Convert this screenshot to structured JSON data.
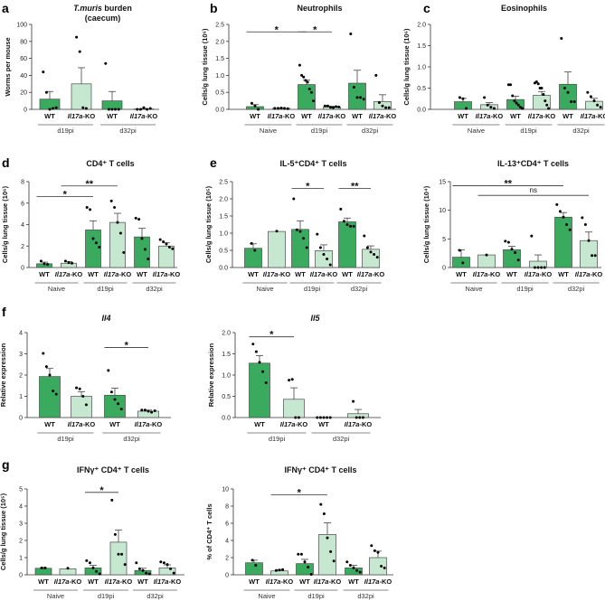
{
  "colors": {
    "wt": "#3aab5e",
    "ko": "#c6e8d0",
    "outline": "#4a4a4a",
    "point": "#000000",
    "group_line": "#8a8a8a"
  },
  "chart_data": [
    {
      "panel": "a",
      "type": "bar",
      "title": [
        "T.muris burden",
        "(caecum)"
      ],
      "title_style": "italic-first-word",
      "ylabel": "Worms per mouse",
      "ylim": [
        0,
        100
      ],
      "yticks": [
        "0",
        "20",
        "40",
        "60",
        "80",
        "100"
      ],
      "categories": [
        "WT",
        "Il17a-KO",
        "WT",
        "Il17a-KO"
      ],
      "groups": [
        {
          "label": "d19pi",
          "span": [
            0,
            1
          ]
        },
        {
          "label": "d32pi",
          "span": [
            2,
            3
          ]
        }
      ],
      "means": [
        12,
        30,
        10,
        0.5
      ],
      "sem": [
        9,
        19,
        11,
        0.5
      ],
      "points": [
        [
          44,
          20,
          0,
          1,
          2
        ],
        [
          85,
          68,
          2,
          1
        ],
        [
          54,
          0,
          0,
          0,
          0
        ],
        [
          0,
          0,
          2,
          0,
          1
        ]
      ],
      "significance": []
    },
    {
      "panel": "b",
      "type": "bar",
      "title": [
        "Neutrophils"
      ],
      "title_style": "normal",
      "ylabel": "Cells/g lung tissue  (10⁶)",
      "ylim": [
        0,
        2.5
      ],
      "yticks": [
        "0.0",
        "0.5",
        "1.0",
        "1.5",
        "2.0",
        "2.5"
      ],
      "categories": [
        "WT",
        "Il17a-KO",
        "WT",
        "Il17a-KO",
        "WT",
        "Il17a-KO"
      ],
      "groups": [
        {
          "label": "Naive",
          "span": [
            0,
            1
          ]
        },
        {
          "label": "d19pi",
          "span": [
            2,
            3
          ]
        },
        {
          "label": "d32pi",
          "span": [
            4,
            5
          ]
        }
      ],
      "means": [
        0.08,
        0.03,
        0.73,
        0.07,
        0.77,
        0.23
      ],
      "sem": [
        0.06,
        0.01,
        0.13,
        0.02,
        0.38,
        0.2
      ],
      "points": [
        [
          0.18,
          0.1,
          0
        ],
        [
          0.03,
          0.03,
          0.04,
          0.03,
          0.02
        ],
        [
          1.3,
          1.0,
          0.95,
          0.85,
          0.8,
          0.6,
          0.5,
          0.25
        ],
        [
          0.1,
          0.1,
          0.06,
          0.05,
          0.08,
          0.07
        ],
        [
          2.22,
          0.65,
          0.35,
          0.35,
          0.3
        ],
        [
          1.0,
          0.2,
          0.1,
          0.05,
          0.05
        ]
      ],
      "significance": [
        {
          "from": 0,
          "to": 2,
          "y": 2.28,
          "label": "*"
        },
        {
          "from": 2,
          "to": 3,
          "y": 2.28,
          "label": "*"
        }
      ]
    },
    {
      "panel": "c",
      "type": "bar",
      "title": [
        "Eosinophils"
      ],
      "title_style": "normal",
      "ylabel": "Cells/g lung tissue  (10⁶)",
      "ylim": [
        0,
        2.0
      ],
      "yticks": [
        "0.0",
        "0.5",
        "1.0",
        "1.5",
        "2.0"
      ],
      "categories": [
        "WT",
        "Il17a-KO",
        "WT",
        "Il17a-KO",
        "WT",
        "Il17a-KO"
      ],
      "groups": [
        {
          "label": "Naive",
          "span": [
            0,
            1
          ]
        },
        {
          "label": "d19pi",
          "span": [
            2,
            3
          ]
        },
        {
          "label": "d32pi",
          "span": [
            4,
            5
          ]
        }
      ],
      "means": [
        0.18,
        0.11,
        0.23,
        0.33,
        0.59,
        0.19
      ],
      "sem": [
        0.08,
        0.05,
        0.08,
        0.09,
        0.29,
        0.07
      ],
      "points": [
        [
          0.28,
          0.25,
          0.02
        ],
        [
          0.28,
          0.1,
          0.05,
          0.02
        ],
        [
          0.58,
          0.58,
          0.32,
          0.2,
          0.15,
          0.1,
          0.05,
          0.02
        ],
        [
          0.62,
          0.65,
          0.6,
          0.5,
          0.5,
          0.35,
          0.2,
          0.1,
          0.02
        ],
        [
          1.67,
          0.5,
          0.4,
          0.18,
          0.18
        ],
        [
          0.4,
          0.3,
          0.2,
          0.1,
          0.05
        ]
      ],
      "significance": []
    },
    {
      "panel": "d",
      "type": "bar",
      "title": [
        "CD4⁺ T cells"
      ],
      "title_style": "normal",
      "ylabel": "Cells/g lung tissue  (10⁶)",
      "ylim": [
        0,
        8
      ],
      "yticks": [
        "0",
        "2",
        "4",
        "6",
        "8"
      ],
      "categories": [
        "WT",
        "Il17a-KO",
        "WT",
        "Il17a-KO",
        "WT",
        "Il17a-KO"
      ],
      "groups": [
        {
          "label": "Naive",
          "span": [
            0,
            1
          ]
        },
        {
          "label": "d19pi",
          "span": [
            2,
            3
          ]
        },
        {
          "label": "d32pi",
          "span": [
            4,
            5
          ]
        }
      ],
      "means": [
        0.35,
        0.4,
        3.5,
        4.2,
        2.85,
        2.0
      ],
      "sem": [
        0.15,
        0.15,
        0.85,
        0.85,
        0.8,
        0.3
      ],
      "points": [
        [
          0.6,
          0.35,
          0.3
        ],
        [
          0.6,
          0.45,
          0.4
        ],
        [
          5.6,
          5.4,
          2.7,
          2.3,
          1.9
        ],
        [
          6.2,
          5.6,
          4.2,
          3.2,
          1.4
        ],
        [
          4.6,
          4.5,
          2.7,
          1.7,
          0.8
        ],
        [
          2.6,
          2.4,
          2.2,
          1.9,
          1.75
        ]
      ],
      "significance": [
        {
          "from": 0,
          "to": 2,
          "y": 6.6,
          "label": "*"
        },
        {
          "from": 1,
          "to": 3,
          "y": 7.6,
          "label": "**"
        }
      ]
    },
    {
      "panel": "e",
      "type": "bar",
      "title": [
        "IL-5⁺CD4⁺ T cells"
      ],
      "title_style": "normal",
      "ylabel": "Cells/g lung tissue  (10⁵)",
      "ylim": [
        0,
        2.5
      ],
      "yticks": [
        "0.0",
        "0.5",
        "1.0",
        "1.5",
        "2.0",
        "2.5"
      ],
      "categories": [
        "WT",
        "Il17a-KO",
        "WT",
        "Il17a-KO",
        "WT",
        "Il17a-KO"
      ],
      "groups": [
        {
          "label": "Naive",
          "span": [
            0,
            1
          ]
        },
        {
          "label": "d19pi",
          "span": [
            2,
            3
          ]
        },
        {
          "label": "d32pi",
          "span": [
            4,
            5
          ]
        }
      ],
      "means": [
        0.56,
        1.05,
        1.11,
        0.49,
        1.33,
        0.53
      ],
      "sem": [
        0.13,
        0,
        0.25,
        0.17,
        0.11,
        0.1
      ],
      "points": [
        [
          0.7,
          0.5
        ],
        [
          1.06
        ],
        [
          2.0,
          1.1,
          1.05,
          0.85,
          0.58
        ],
        [
          0.97,
          0.58,
          0.38,
          0.25,
          0.08
        ],
        [
          1.7,
          1.35,
          1.25,
          1.2,
          1.2
        ],
        [
          0.92,
          0.58,
          0.45,
          0.38,
          0.3
        ]
      ],
      "significance": [
        {
          "from": 2,
          "to": 3,
          "y": 2.3,
          "label": "*"
        },
        {
          "from": 4,
          "to": 5,
          "y": 2.3,
          "label": "**"
        }
      ]
    },
    {
      "panel": "",
      "type": "bar",
      "title": [
        "IL-13⁺CD4⁺ T cells"
      ],
      "title_style": "normal",
      "ylabel": "Cells/g lung tissue  (10⁴)",
      "ylim": [
        0,
        15
      ],
      "yticks": [
        "0",
        "5",
        "10",
        "15"
      ],
      "categories": [
        "WT",
        "Il17a-KO",
        "WT",
        "Il17a-KO",
        "WT",
        "Il17a-KO"
      ],
      "groups": [
        {
          "label": "Naive",
          "span": [
            0,
            1
          ]
        },
        {
          "label": "d19pi",
          "span": [
            2,
            3
          ]
        },
        {
          "label": "d32pi",
          "span": [
            4,
            5
          ]
        }
      ],
      "means": [
        1.8,
        2.2,
        3.1,
        1.1,
        8.8,
        4.7
      ],
      "sem": [
        1.3,
        0,
        0.6,
        1.1,
        0.8,
        1.5
      ],
      "points": [
        [
          3,
          0.8
        ],
        [
          2.2
        ],
        [
          4.6,
          4.4,
          3.2,
          2.6,
          1.3
        ],
        [
          5.5,
          0,
          0,
          0,
          0
        ],
        [
          11,
          9.8,
          8.8,
          7.5,
          6.6
        ],
        [
          8.7,
          7.5,
          4.7,
          2.1,
          2.1
        ]
      ],
      "significance": [
        {
          "from": 0,
          "to": 4,
          "y": 14.3,
          "label": "**"
        },
        {
          "from": 1,
          "to": 5,
          "y": 12.6,
          "label": "ns"
        }
      ]
    },
    {
      "panel": "f",
      "type": "bar",
      "title": [
        "Il4"
      ],
      "title_style": "italic",
      "ylabel": "Relative expression",
      "ylim": [
        0,
        4
      ],
      "yticks": [
        "0",
        "1",
        "2",
        "3",
        "4"
      ],
      "categories": [
        "WT",
        "Il17a-KO",
        "WT",
        "Il17a-KO"
      ],
      "groups": [
        {
          "label": "d19pi",
          "span": [
            0,
            1
          ]
        },
        {
          "label": "d32pi",
          "span": [
            2,
            3
          ]
        }
      ],
      "means": [
        1.93,
        1.0,
        1.05,
        0.3
      ],
      "sem": [
        0.38,
        0.22,
        0.33,
        0.05
      ],
      "points": [
        [
          3.02,
          2.4,
          2.0,
          1.25,
          1.1
        ],
        [
          1.4,
          1.35,
          1.0,
          0.6
        ],
        [
          2.22,
          1.2,
          0.85,
          0.65,
          0.4
        ],
        [
          0.35,
          0.35,
          0.3,
          0.25,
          0.32
        ]
      ],
      "significance": [
        {
          "from": 2,
          "to": 3,
          "y": 3.3,
          "label": "*"
        }
      ]
    },
    {
      "panel": "",
      "type": "bar",
      "title": [
        "Il5"
      ],
      "title_style": "italic",
      "ylabel": "Relative expression",
      "ylim": [
        0,
        2.0
      ],
      "yticks": [
        "0.0",
        "0.5",
        "1.0",
        "1.5",
        "2.0"
      ],
      "categories": [
        "WT",
        "Il17a-KO",
        "WT",
        "Il17a-KO"
      ],
      "groups": [
        {
          "label": "d19pi",
          "span": [
            0,
            1
          ]
        },
        {
          "label": "d32pi",
          "span": [
            2,
            3
          ]
        }
      ],
      "means": [
        1.28,
        0.43,
        0,
        0.09
      ],
      "sem": [
        0.18,
        0.27,
        0,
        0.1
      ],
      "points": [
        [
          1.73,
          1.55,
          1.3,
          1.08,
          0.82
        ],
        [
          0.88,
          0.9,
          0,
          0
        ],
        [
          0,
          0,
          0,
          0,
          0
        ],
        [
          0.38,
          0,
          0,
          0
        ]
      ],
      "significance": [
        {
          "from": 0,
          "to": 1,
          "y": 1.9,
          "label": "*"
        }
      ]
    },
    {
      "panel": "g",
      "type": "bar",
      "title": [
        "IFNγ⁺ CD4⁺ T cells"
      ],
      "title_style": "normal",
      "ylabel": "Cells/g lung tissue  (10⁵)",
      "ylim": [
        0,
        5
      ],
      "yticks": [
        "0",
        "1",
        "2",
        "3",
        "4",
        "5"
      ],
      "categories": [
        "WT",
        "Il17a-KO",
        "WT",
        "Il17a-KO",
        "WT",
        "Il17a-KO"
      ],
      "groups": [
        {
          "label": "Naive",
          "span": [
            0,
            1
          ]
        },
        {
          "label": "d19pi",
          "span": [
            2,
            3
          ]
        },
        {
          "label": "d32pi",
          "span": [
            4,
            5
          ]
        }
      ],
      "means": [
        0.38,
        0.35,
        0.4,
        1.9,
        0.25,
        0.4
      ],
      "sem": [
        0.02,
        0,
        0.15,
        0.7,
        0.13,
        0.18
      ],
      "points": [
        [
          0.4,
          0.4
        ],
        [
          0.38
        ],
        [
          0.82,
          0.7,
          0.4,
          0.2,
          0.05
        ],
        [
          4.35,
          2.35,
          1.2,
          1.2,
          0.6
        ],
        [
          0.7,
          0.35,
          0.25,
          0.1,
          0.05
        ],
        [
          0.75,
          0.7,
          0.6,
          0.35,
          0.1
        ]
      ],
      "significance": [
        {
          "from": 2,
          "to": 3,
          "y": 4.8,
          "label": "*"
        }
      ]
    },
    {
      "panel": "",
      "type": "bar",
      "title": [
        "IFNγ⁺ CD4⁺ T cells"
      ],
      "title_style": "normal",
      "ylabel": "% of CD4⁺ T cells",
      "ylim": [
        0,
        10
      ],
      "yticks": [
        "0",
        "2",
        "4",
        "6",
        "8",
        "10"
      ],
      "categories": [
        "WT",
        "Il17a-KO",
        "WT",
        "Il17a-KO",
        "WT",
        "Il17a-KO"
      ],
      "groups": [
        {
          "label": "Naive",
          "span": [
            0,
            1
          ]
        },
        {
          "label": "d19pi",
          "span": [
            2,
            3
          ]
        },
        {
          "label": "d32pi",
          "span": [
            4,
            5
          ]
        }
      ],
      "means": [
        1.4,
        0.45,
        1.3,
        4.7,
        0.8,
        2.0
      ],
      "sem": [
        0.3,
        0.15,
        0.5,
        1.35,
        0.3,
        0.75
      ],
      "points": [
        [
          1.7,
          1.1
        ],
        [
          0.5,
          0.55,
          0.6
        ],
        [
          2.4,
          2.4,
          1.5,
          0.9,
          0.05
        ],
        [
          8.2,
          7.1,
          4.3,
          2.7,
          1.6
        ],
        [
          1.5,
          1.1,
          0.8,
          0.5,
          0.3
        ],
        [
          3.4,
          2.8,
          2.6,
          1.0,
          0.8
        ]
      ],
      "significance": [
        {
          "from": 1,
          "to": 3,
          "y": 9.3,
          "label": "*"
        }
      ]
    }
  ]
}
